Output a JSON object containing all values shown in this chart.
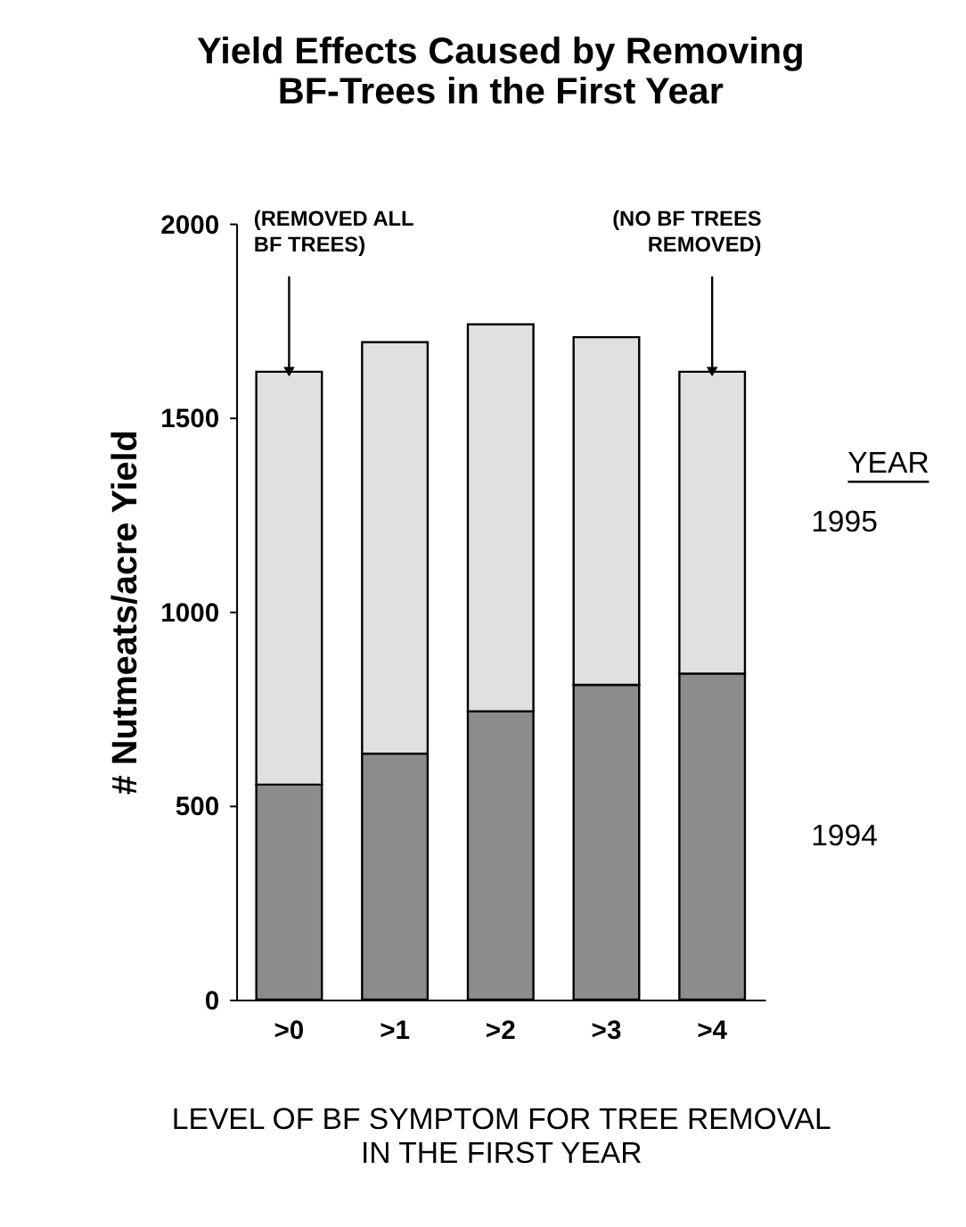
{
  "chart_data": {
    "type": "bar",
    "title": [
      "Yield Effects Caused by Removing",
      "BF-Trees in the First Year"
    ],
    "categories": [
      ">0",
      ">1",
      ">2",
      ">3",
      ">4"
    ],
    "series": [
      {
        "name": "1994",
        "color": "#8c8c8c",
        "values": [
          554,
          634,
          743,
          811,
          840
        ]
      },
      {
        "name": "1995",
        "color": "#e0e0e0",
        "values": [
          1064,
          1060,
          997,
          896,
          778
        ]
      }
    ],
    "stacked": true,
    "ylim": [
      0,
      2000
    ],
    "yticks": [
      0,
      500,
      1000,
      1500,
      2000
    ],
    "grid": false,
    "ylabel": "# Nutmeats/acre Yield",
    "xlabel": [
      "LEVEL OF BF SYMPTOM FOR TREE REMOVAL",
      "IN THE FIRST YEAR"
    ],
    "legend_title": "YEAR",
    "legend": "right",
    "annotations": [
      {
        "text": "(REMOVED ALL\nBF TREES)",
        "x": ">0",
        "y": 1618
      },
      {
        "text": "(NO BF TREES\nREMOVED)",
        "x": ">4",
        "y": 1618
      }
    ]
  }
}
